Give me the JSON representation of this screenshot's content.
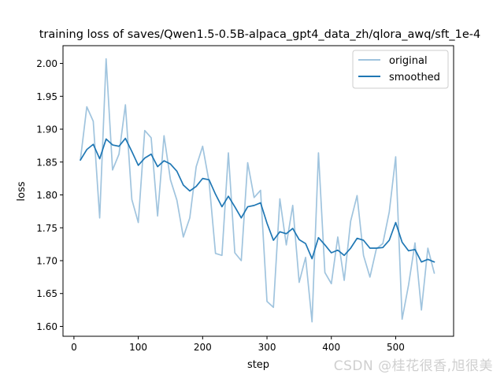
{
  "chart_data": {
    "type": "line",
    "title": "training loss of saves/Qwen1.5-0.5B-alpaca_gpt4_data_zh/qlora_awq/sft_1e-4",
    "xlabel": "step",
    "ylabel": "loss",
    "xlim": [
      -17,
      590
    ],
    "ylim": [
      1.585,
      2.027
    ],
    "xticks": [
      0,
      100,
      200,
      300,
      400,
      500
    ],
    "yticks": [
      1.6,
      1.65,
      1.7,
      1.75,
      1.8,
      1.85,
      1.9,
      1.95,
      2.0
    ],
    "grid": false,
    "legend_position": "top-right",
    "x": [
      10,
      20,
      30,
      40,
      50,
      60,
      70,
      80,
      90,
      100,
      110,
      120,
      130,
      140,
      150,
      160,
      170,
      180,
      190,
      200,
      210,
      220,
      230,
      240,
      250,
      260,
      270,
      280,
      290,
      300,
      310,
      320,
      330,
      340,
      350,
      360,
      370,
      380,
      390,
      400,
      410,
      420,
      430,
      440,
      450,
      460,
      470,
      480,
      490,
      500,
      510,
      520,
      530,
      540,
      550,
      560
    ],
    "series": [
      {
        "name": "original",
        "color": "#a0c4de",
        "values": [
          1.853,
          1.934,
          1.912,
          1.765,
          2.007,
          1.838,
          1.862,
          1.937,
          1.793,
          1.758,
          1.898,
          1.887,
          1.768,
          1.89,
          1.823,
          1.792,
          1.736,
          1.765,
          1.843,
          1.874,
          1.82,
          1.711,
          1.708,
          1.864,
          1.712,
          1.7,
          1.849,
          1.796,
          1.807,
          1.638,
          1.629,
          1.794,
          1.724,
          1.784,
          1.667,
          1.705,
          1.607,
          1.864,
          1.682,
          1.665,
          1.736,
          1.67,
          1.76,
          1.799,
          1.708,
          1.675,
          1.718,
          1.726,
          1.774,
          1.858,
          1.611,
          1.663,
          1.727,
          1.625,
          1.719,
          1.681
        ]
      },
      {
        "name": "smoothed",
        "color": "#1f77b4",
        "values": [
          1.853,
          1.869,
          1.877,
          1.855,
          1.885,
          1.876,
          1.874,
          1.886,
          1.866,
          1.845,
          1.856,
          1.862,
          1.843,
          1.852,
          1.847,
          1.836,
          1.815,
          1.806,
          1.813,
          1.825,
          1.823,
          1.801,
          1.782,
          1.798,
          1.782,
          1.765,
          1.782,
          1.784,
          1.788,
          1.757,
          1.731,
          1.744,
          1.741,
          1.749,
          1.732,
          1.726,
          1.703,
          1.735,
          1.724,
          1.712,
          1.716,
          1.708,
          1.719,
          1.734,
          1.731,
          1.719,
          1.719,
          1.72,
          1.731,
          1.758,
          1.728,
          1.715,
          1.717,
          1.698,
          1.702,
          1.698
        ]
      }
    ]
  },
  "watermark": "CSDN @桂花很香,旭很美"
}
